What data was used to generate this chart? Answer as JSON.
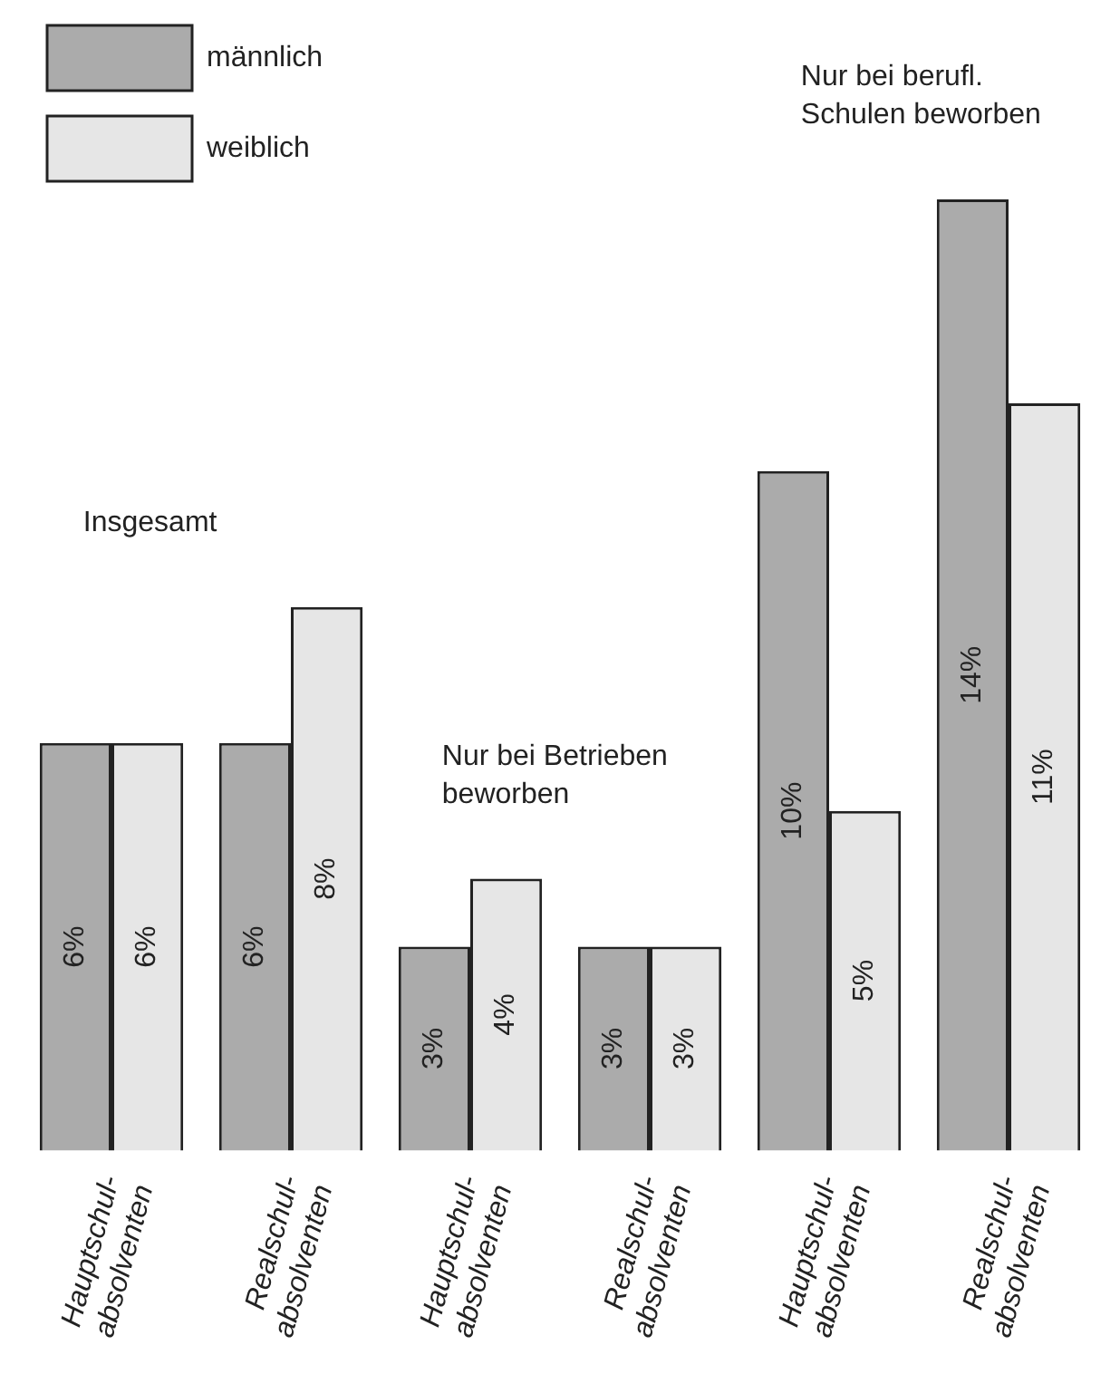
{
  "chart_data": {
    "type": "bar",
    "categories": [
      [
        "Hauptschul-",
        "absolventen"
      ],
      [
        "Realschul-",
        "absolventen"
      ],
      [
        "Hauptschul-",
        "absolventen"
      ],
      [
        "Realschul-",
        "absolventen"
      ],
      [
        "Hauptschul-",
        "absolventen"
      ],
      [
        "Realschul-",
        "absolventen"
      ]
    ],
    "series": [
      {
        "name": "männlich",
        "color": "#ababab",
        "values": [
          6,
          6,
          3,
          3,
          10,
          14
        ],
        "value_labels": [
          "6%",
          "6%",
          "3%",
          "3%",
          "10%",
          "14%"
        ]
      },
      {
        "name": "weiblich",
        "color": "#e6e6e6",
        "values": [
          6,
          8,
          4,
          3,
          5,
          11
        ],
        "value_labels": [
          "6%",
          "8%",
          "4%",
          "3%",
          "5%",
          "11%"
        ]
      }
    ],
    "ylim": [
      0,
      14
    ],
    "tick_labels": "x",
    "grid": false,
    "legend": "top left",
    "annotations": [
      "Insgesamt",
      "Nur bei Betrieben\nbeworben",
      "Nur bei berufl.\nSchulen beworben"
    ]
  }
}
